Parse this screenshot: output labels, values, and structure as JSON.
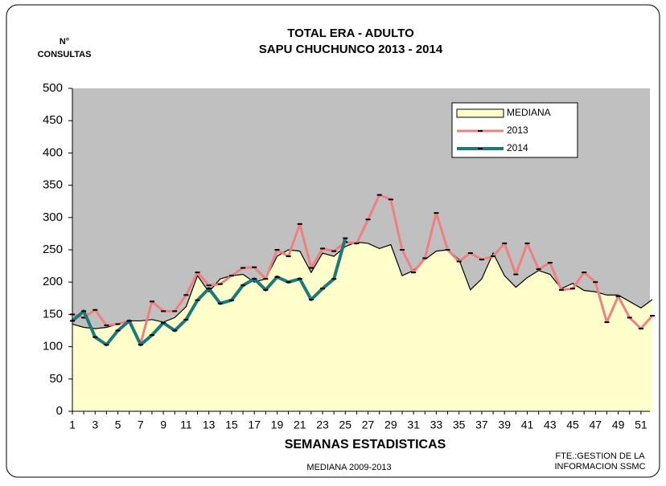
{
  "chart_data": {
    "type": "line",
    "title": "TOTAL ERA - ADULTO",
    "subtitle": "SAPU CHUCHUNCO   2013 - 2014",
    "y_label": [
      "N°",
      "CONSULTAS"
    ],
    "x_label": "SEMANAS ESTADISTICAS",
    "source": [
      "FTE.:GESTION DE LA",
      "INFORMACION SSMC"
    ],
    "note": "MEDIANA 2009-2013",
    "x": [
      1,
      2,
      3,
      4,
      5,
      6,
      7,
      8,
      9,
      10,
      11,
      12,
      13,
      14,
      15,
      16,
      17,
      18,
      19,
      20,
      21,
      22,
      23,
      24,
      25,
      26,
      27,
      28,
      29,
      30,
      31,
      32,
      33,
      34,
      35,
      36,
      37,
      38,
      39,
      40,
      41,
      42,
      43,
      44,
      45,
      46,
      47,
      48,
      49,
      50,
      51,
      52
    ],
    "xlim": [
      1,
      52
    ],
    "xticks": [
      1,
      3,
      5,
      7,
      9,
      11,
      13,
      15,
      17,
      19,
      21,
      23,
      25,
      27,
      29,
      31,
      33,
      35,
      37,
      39,
      41,
      43,
      45,
      47,
      49,
      51
    ],
    "ylim": [
      0,
      500
    ],
    "yticks": [
      0,
      50,
      100,
      150,
      200,
      250,
      300,
      350,
      400,
      450,
      500
    ],
    "series": [
      {
        "name": "MEDIANA",
        "style": "area",
        "color": "#ffffcc",
        "values": [
          135,
          130,
          128,
          130,
          135,
          140,
          140,
          142,
          138,
          145,
          162,
          210,
          185,
          205,
          210,
          212,
          200,
          205,
          240,
          250,
          248,
          215,
          245,
          240,
          255,
          262,
          260,
          252,
          258,
          210,
          218,
          235,
          248,
          250,
          235,
          188,
          205,
          245,
          210,
          192,
          207,
          218,
          212,
          190,
          198,
          187,
          185,
          180,
          180,
          170,
          160,
          173
        ]
      },
      {
        "name": "2013",
        "style": "line",
        "color": "#f08080",
        "values": [
          150,
          145,
          157,
          133,
          135,
          140,
          105,
          170,
          155,
          155,
          180,
          215,
          195,
          197,
          210,
          222,
          223,
          205,
          250,
          240,
          290,
          222,
          252,
          248,
          262,
          260,
          297,
          335,
          328,
          250,
          215,
          237,
          307,
          250,
          232,
          245,
          235,
          240,
          260,
          212,
          260,
          220,
          230,
          188,
          190,
          215,
          200,
          138,
          178,
          145,
          128,
          148
        ]
      },
      {
        "name": "2014",
        "style": "line",
        "color": "#1a7a7a",
        "values": [
          140,
          155,
          115,
          103,
          125,
          140,
          103,
          118,
          137,
          125,
          142,
          172,
          190,
          167,
          172,
          195,
          205,
          188,
          208,
          200,
          205,
          173,
          190,
          205,
          268,
          null,
          null,
          null,
          null,
          null,
          null,
          null,
          null,
          null,
          null,
          null,
          null,
          null,
          null,
          null,
          null,
          null,
          null,
          null,
          null,
          null,
          null,
          null,
          null,
          null,
          null,
          null
        ]
      }
    ]
  }
}
